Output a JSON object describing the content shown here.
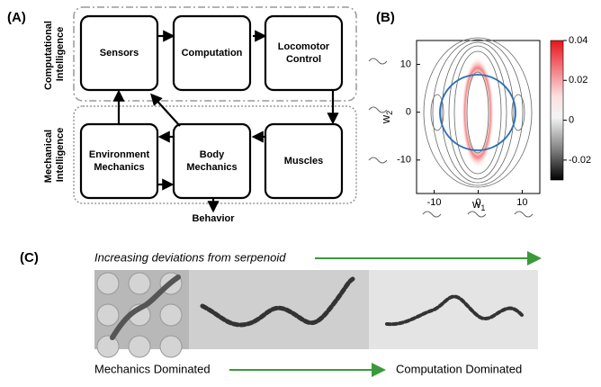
{
  "panel_a": {
    "label": "(A)",
    "group_labels": [
      [
        "Computational",
        "Intelligence"
      ],
      [
        "Mechanical",
        "Intelligence"
      ]
    ],
    "boxes": [
      [
        "Sensors"
      ],
      [
        "Computation"
      ],
      [
        "Locomotor",
        "Control"
      ],
      [
        "Environment",
        "Mechanics"
      ],
      [
        "Body",
        "Mechanics"
      ],
      [
        "Muscles"
      ]
    ],
    "output": "Behavior"
  },
  "panel_b": {
    "label": "(B)",
    "x_label": "w",
    "x_label_sub": "1",
    "y_label": "w",
    "y_label_sub": "2",
    "xlim": [
      -14,
      14
    ],
    "ylim": [
      -17,
      15
    ],
    "xticks": [
      -10,
      0,
      10
    ],
    "yticks": [
      -10,
      0,
      10
    ],
    "colorbar": {
      "lim": [
        -0.03,
        0.04
      ],
      "ticks": [
        -0.02,
        0,
        0.02,
        0.04
      ]
    }
  },
  "panel_c": {
    "label": "(C)",
    "top_caption": "Increasing deviations from serpenoid",
    "left_caption": "Mechanics Dominated",
    "right_caption": "Computation Dominated"
  }
}
